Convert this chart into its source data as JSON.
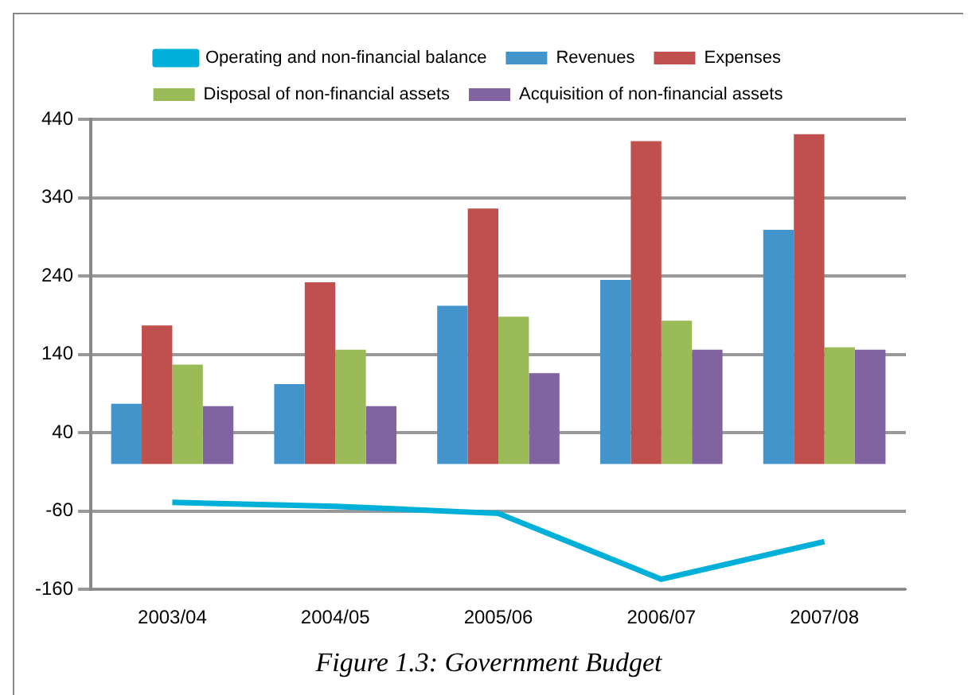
{
  "chart_data": {
    "type": "bar",
    "title": "Figure 1.3: Government Budget",
    "categories": [
      "2003/04",
      "2004/05",
      "2005/06",
      "2006/07",
      "2007/08"
    ],
    "series": [
      {
        "name": "Revenues",
        "color": "#4394cb",
        "values": [
          77,
          102,
          202,
          235,
          299
        ]
      },
      {
        "name": "Expenses",
        "color": "#c0504d",
        "values": [
          177,
          232,
          326,
          412,
          421
        ]
      },
      {
        "name": "Disposal of non-financial assets",
        "color": "#9bbb59",
        "values": [
          127,
          146,
          188,
          183,
          149
        ]
      },
      {
        "name": "Acquisition of non-financial assets",
        "color": "#8064a2",
        "values": [
          74,
          74,
          116,
          146,
          146
        ]
      },
      {
        "name": "Operating and non-financial balance",
        "type": "line",
        "color": "#00b0d8",
        "values": [
          -49,
          -54,
          -63,
          -147,
          -99
        ]
      }
    ],
    "ylim": [
      -160,
      440
    ],
    "yticks": [
      -160,
      -60,
      40,
      140,
      240,
      340,
      440
    ],
    "grid": "y",
    "legend": "top",
    "marker": "none"
  }
}
